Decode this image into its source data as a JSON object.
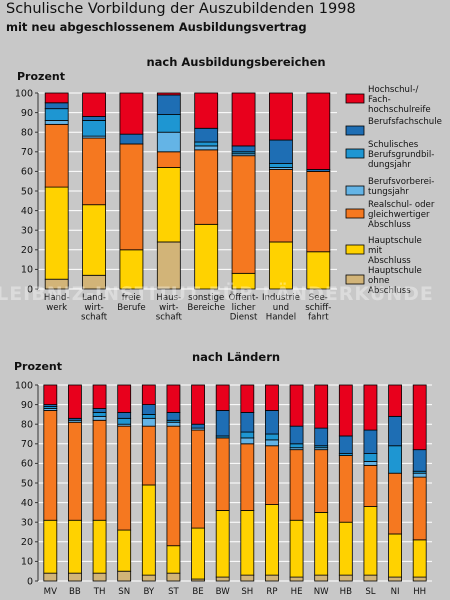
{
  "title": "Schulische Vorbildung der Auszubildenden 1998",
  "subtitle": "mit neu abgeschlossenem Ausbildungsvertrag",
  "watermark": "LEIBNIZ-INSTITUT FÜR LÄNDERKUNDE",
  "colors": {
    "hochschulreife": "#e8001c",
    "berufsfachschule": "#1e6eb4",
    "berufsgrundbildungsjahr": "#1e96d2",
    "berufsvorbereitungsjahr": "#64b4e6",
    "realschule": "#f57820",
    "hauptschule_mit": "#ffd200",
    "hauptschule_ohne": "#d2b478"
  },
  "legend": [
    {
      "key": "hochschulreife",
      "lines": [
        "Hochschul-/",
        "Fach-",
        "hochschulreife"
      ]
    },
    {
      "key": "berufsfachschule",
      "lines": [
        "Berufsfachschule"
      ]
    },
    {
      "key": "berufsgrundbildungsjahr",
      "lines": [
        "Schulisches",
        "Berufsgrundbil-",
        "dungsjahr"
      ]
    },
    {
      "key": "berufsvorbereitungsjahr",
      "lines": [
        "Berufsvorberei-",
        "tungsjahr"
      ]
    },
    {
      "key": "realschule",
      "lines": [
        "Realschul- oder",
        "gleichwertiger",
        "Abschluss"
      ]
    },
    {
      "key": "hauptschule_mit",
      "lines": [
        "Hauptschule",
        "mit",
        "Abschluss"
      ]
    },
    {
      "key": "hauptschule_ohne",
      "lines": [
        "Hauptschule",
        "ohne",
        "Abschluss"
      ]
    }
  ],
  "chart_data": [
    {
      "type": "bar",
      "stacked": true,
      "title": "nach Ausbildungsbereichen",
      "ylabel": "Prozent",
      "ylim": [
        0,
        100
      ],
      "yticks": [
        0,
        10,
        20,
        30,
        40,
        50,
        60,
        70,
        80,
        90,
        100
      ],
      "grid": true,
      "legend_position": "right",
      "categories": [
        "Handwerk",
        "Landwirtschaft",
        "freie Berufe",
        "Hauswirtschaft",
        "sonstige Bereiche",
        "Öffentlicher Dienst",
        "Industrie und Handel",
        "Seeschifffahrt"
      ],
      "category_labels": [
        [
          "Hand-",
          "werk"
        ],
        [
          "Land-",
          "wirt-",
          "schaft"
        ],
        [
          "freie",
          "Berufe"
        ],
        [
          "Haus-",
          "wirt-",
          "schaft"
        ],
        [
          "sonstige",
          "Bereiche"
        ],
        [
          "Öffent-",
          "licher",
          "Dienst"
        ],
        [
          "Industrie",
          "und",
          "Handel"
        ],
        [
          "See-",
          "schiff-",
          "fahrt"
        ]
      ],
      "series": [
        {
          "key": "hauptschule_ohne",
          "name": "Hauptschule ohne Abschluss",
          "values": [
            5,
            7,
            0,
            24,
            0,
            0,
            0,
            0
          ]
        },
        {
          "key": "hauptschule_mit",
          "name": "Hauptschule mit Abschluss",
          "values": [
            47,
            36,
            20,
            38,
            33,
            8,
            24,
            19
          ]
        },
        {
          "key": "realschule",
          "name": "Realschul- oder gleichwertiger Abschluss",
          "values": [
            32,
            34,
            54,
            8,
            38,
            60,
            37,
            41
          ]
        },
        {
          "key": "berufsvorbereitungsjahr",
          "name": "Berufsvorbereitungsjahr",
          "values": [
            2,
            1,
            0,
            10,
            2,
            1,
            1,
            0
          ]
        },
        {
          "key": "berufsgrundbildungsjahr",
          "name": "Schulisches Berufsgrundbildungsjahr",
          "values": [
            6,
            8,
            0,
            9,
            2,
            1,
            2,
            0
          ]
        },
        {
          "key": "berufsfachschule",
          "name": "Berufsfachschule",
          "values": [
            3,
            2,
            5,
            10,
            7,
            3,
            12,
            1
          ]
        },
        {
          "key": "hochschulreife",
          "name": "Hochschul-/Fachhochschulreife",
          "values": [
            5,
            12,
            21,
            1,
            18,
            27,
            24,
            39
          ]
        }
      ]
    },
    {
      "type": "bar",
      "stacked": true,
      "title": "nach Ländern",
      "ylabel": "Prozent",
      "ylim": [
        0,
        100
      ],
      "yticks": [
        0,
        10,
        20,
        30,
        40,
        50,
        60,
        70,
        80,
        90,
        100
      ],
      "grid": true,
      "categories": [
        "MV",
        "BB",
        "TH",
        "SN",
        "BY",
        "ST",
        "BE",
        "BW",
        "SH",
        "RP",
        "HE",
        "NW",
        "HB",
        "SL",
        "NI",
        "HH"
      ],
      "series": [
        {
          "key": "hauptschule_ohne",
          "name": "Hauptschule ohne Abschluss",
          "values": [
            4,
            4,
            4,
            5,
            3,
            4,
            1,
            2,
            3,
            3,
            2,
            3,
            3,
            3,
            2,
            2
          ]
        },
        {
          "key": "hauptschule_mit",
          "name": "Hauptschule mit Abschluss",
          "values": [
            27,
            27,
            27,
            21,
            46,
            14,
            26,
            34,
            33,
            36,
            29,
            32,
            27,
            35,
            22,
            19
          ]
        },
        {
          "key": "realschule",
          "name": "Realschul- oder gleichwertiger Abschluss",
          "values": [
            56,
            50,
            51,
            53,
            30,
            61,
            50,
            37,
            34,
            30,
            36,
            32,
            34,
            21,
            31,
            32
          ]
        },
        {
          "key": "berufsvorbereitungsjahr",
          "name": "Berufsvorbereitungsjahr",
          "values": [
            1,
            1,
            2,
            1,
            4,
            2,
            1,
            0,
            3,
            3,
            1,
            1,
            0,
            2,
            0,
            2
          ]
        },
        {
          "key": "berufsgrundbildungsjahr",
          "name": "Schulisches Berufsgrundbildungsjahr",
          "values": [
            1,
            0,
            2,
            3,
            2,
            1,
            0,
            1,
            3,
            3,
            2,
            1,
            1,
            4,
            14,
            1
          ]
        },
        {
          "key": "berufsfachschule",
          "name": "Berufsfachschule",
          "values": [
            1,
            1,
            2,
            3,
            5,
            4,
            2,
            13,
            10,
            12,
            9,
            9,
            9,
            12,
            15,
            11
          ]
        },
        {
          "key": "hochschulreife",
          "name": "Hochschul-/Fachhochschulreife",
          "values": [
            10,
            17,
            12,
            14,
            10,
            14,
            20,
            13,
            14,
            13,
            21,
            22,
            26,
            23,
            16,
            33
          ]
        }
      ]
    }
  ]
}
